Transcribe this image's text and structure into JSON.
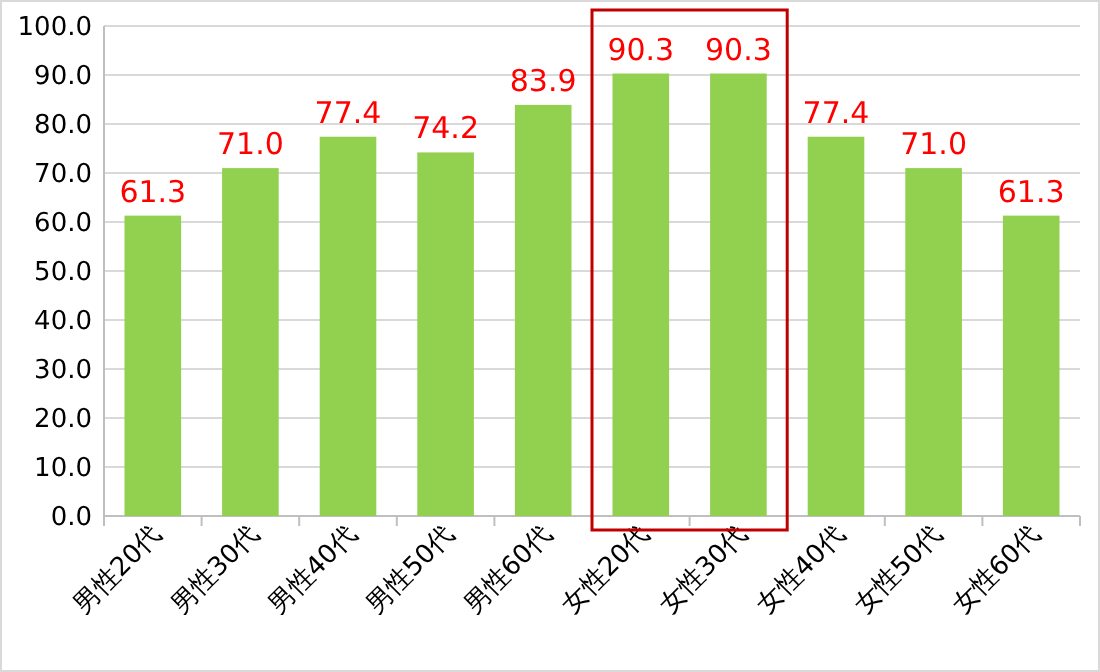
{
  "chart_data": {
    "type": "bar",
    "categories": [
      "男性20代",
      "男性30代",
      "男性40代",
      "男性50代",
      "男性60代",
      "女性20代",
      "女性30代",
      "女性40代",
      "女性50代",
      "女性60代"
    ],
    "values": [
      61.3,
      71.0,
      77.4,
      74.2,
      83.9,
      90.3,
      90.3,
      77.4,
      71.0,
      61.3
    ],
    "value_labels": [
      "61.3",
      "71.0",
      "77.4",
      "74.2",
      "83.9",
      "90.3",
      "90.3",
      "77.4",
      "71.0",
      "61.3"
    ],
    "color": "#92d050",
    "ylim": [
      0,
      100
    ],
    "yticks": [
      {
        "value": 0,
        "label": "0.0"
      },
      {
        "value": 10,
        "label": "10.0"
      },
      {
        "value": 20,
        "label": "20.0"
      },
      {
        "value": 30,
        "label": "30.0"
      },
      {
        "value": 40,
        "label": "40.0"
      },
      {
        "value": 50,
        "label": "50.0"
      },
      {
        "value": 60,
        "label": "60.0"
      },
      {
        "value": 70,
        "label": "70.0"
      },
      {
        "value": 80,
        "label": "80.0"
      },
      {
        "value": 90,
        "label": "90.0"
      },
      {
        "value": 100,
        "label": "100.0"
      }
    ],
    "grid": "y"
  }
}
